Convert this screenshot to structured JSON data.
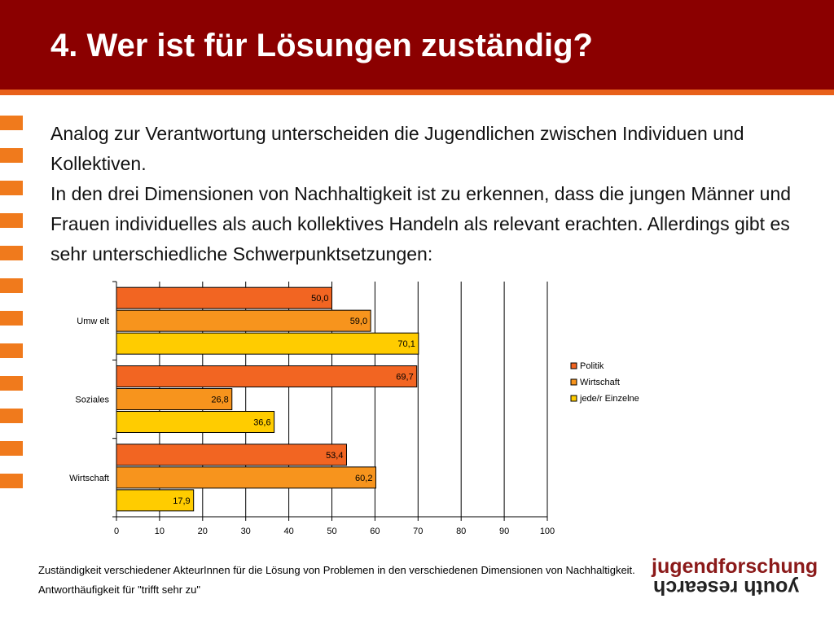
{
  "title": "4. Wer ist für Lösungen zuständig?",
  "paragraphs": [
    "Analog zur Verantwortung unterscheiden die Jugendlichen zwischen Individuen und Kollektiven.",
    "In den drei Dimensionen von Nachhaltigkeit ist zu erkennen, dass die jungen Männer und Frauen individuelles als auch kollektives Handeln als relevant erachten. Allerdings gibt es sehr unterschiedliche Schwerpunktsetzungen:"
  ],
  "colors": {
    "header": "#8b0000",
    "accent": "#e8601a",
    "politik": "#f26522",
    "wirtschaft": "#f7941d",
    "einzelne": "#ffcc00"
  },
  "chart_data": {
    "type": "bar",
    "orientation": "horizontal",
    "categories": [
      "Umw elt",
      "Soziales",
      "Wirtschaft"
    ],
    "series": [
      {
        "name": "Politik",
        "values": [
          50.0,
          69.7,
          53.4
        ],
        "labels": [
          "50,0",
          "69,7",
          "53,4"
        ]
      },
      {
        "name": "Wirtschaft",
        "values": [
          59.0,
          26.8,
          60.2
        ],
        "labels": [
          "59,0",
          "26,8",
          "60,2"
        ]
      },
      {
        "name": "jede/r Einzelne",
        "values": [
          70.1,
          36.6,
          17.9
        ],
        "labels": [
          "70,1",
          "36,6",
          "17,9"
        ]
      }
    ],
    "xlim": [
      0,
      100
    ],
    "xticks": [
      "0",
      "10",
      "20",
      "30",
      "40",
      "50",
      "60",
      "70",
      "80",
      "90",
      "100"
    ],
    "grid": true,
    "legend_position": "right"
  },
  "caption": {
    "line1": "Zuständigkeit verschiedener AkteurInnen für die Lösung von Problemen in den verschiedenen Dimensionen von Nachhaltigkeit.",
    "line2": "Antworthäufigkeit für \"trifft sehr zu\""
  },
  "logo": {
    "top": "jugendforschung",
    "bottom": "youth research"
  }
}
